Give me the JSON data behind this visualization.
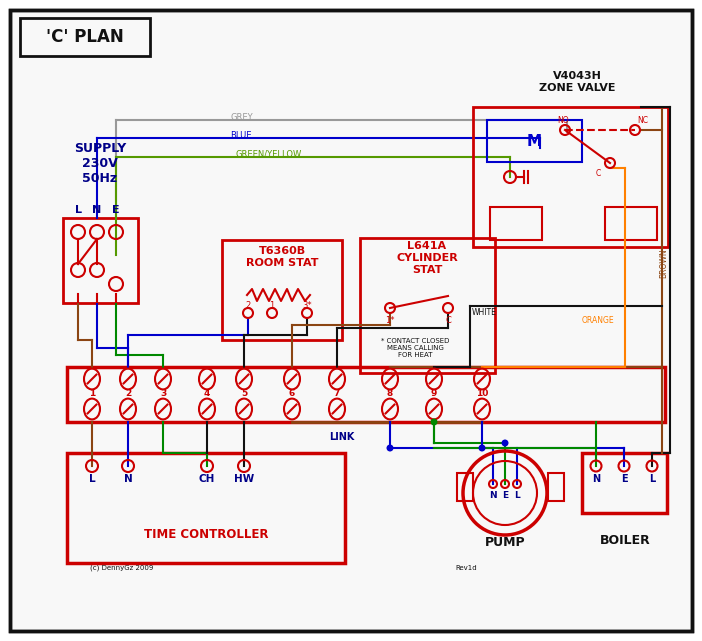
{
  "bg": "#ffffff",
  "red": "#cc0000",
  "blue": "#0000cc",
  "green": "#008800",
  "black": "#111111",
  "grey": "#999999",
  "brown": "#8B4513",
  "orange": "#FF8000",
  "gy": "#559900",
  "db": "#000088",
  "title": "'C' PLAN",
  "zone_valve_title": "V4043H\nZONE VALVE",
  "room_stat_title": "T6360B\nROOM STAT",
  "cyl_stat_title": "L641A\nCYLINDER\nSTAT",
  "supply_title": "SUPPLY\n230V\n50Hz",
  "time_ctrl_title": "TIME CONTROLLER",
  "pump_title": "PUMP",
  "boiler_title": "BOILER",
  "link_title": "LINK",
  "copyright": "(c) DennyGz 2009",
  "revision": "Rev1d",
  "lbl_NO": "NO",
  "lbl_NC": "NC",
  "lbl_C": "C",
  "lbl_M": "M",
  "star_note": "* CONTACT CLOSED\nMEANS CALLING\nFOR HEAT",
  "wire_grey": "GREY",
  "wire_blue": "BLUE",
  "wire_gy": "GREEN/YELLOW",
  "wire_brown": "BROWN",
  "wire_white": "WHITE",
  "wire_orange": "ORANGE"
}
